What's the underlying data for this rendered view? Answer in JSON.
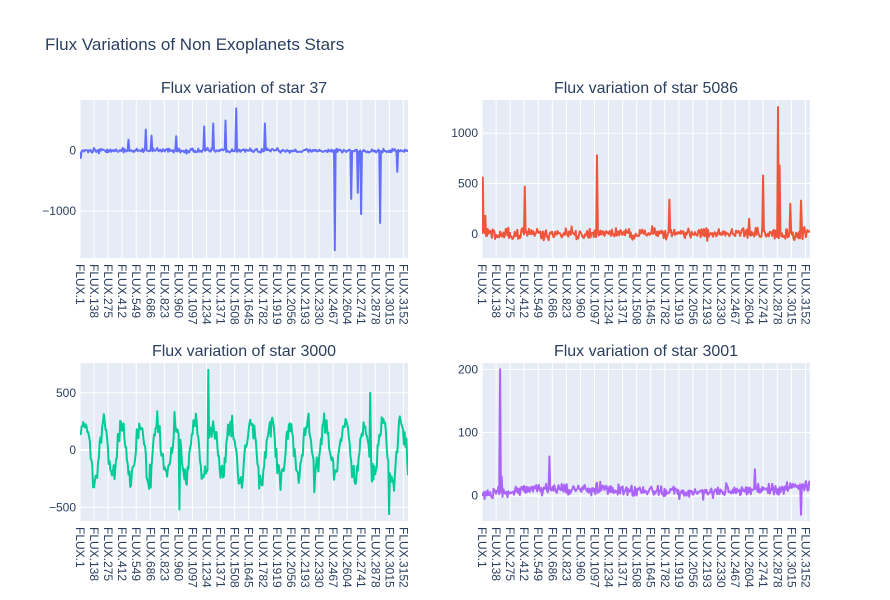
{
  "title": "Flux Variations of Non Exoplanets Stars",
  "chart_data": [
    {
      "type": "line",
      "title": "Flux variation of star 37",
      "color": "#636efa",
      "x_category_prefix": "FLUX.",
      "n_points": 3197,
      "tick_labels": [
        "FLUX.1",
        "FLUX.138",
        "FLUX.275",
        "FLUX.412",
        "FLUX.549",
        "FLUX.686",
        "FLUX.823",
        "FLUX.960",
        "FLUX.1097",
        "FLUX.1234",
        "FLUX.1371",
        "FLUX.1508",
        "FLUX.1645",
        "FLUX.1782",
        "FLUX.1919",
        "FLUX.2056",
        "FLUX.2193",
        "FLUX.2330",
        "FLUX.2467",
        "FLUX.2604",
        "FLUX.2741",
        "FLUX.2878",
        "FLUX.3015",
        "FLUX.3152"
      ],
      "ylim": [
        -1780,
        840
      ],
      "yticks": [
        -1000,
        0
      ],
      "baseline": 0,
      "noise": 25,
      "spikes": [
        [
          5,
          -120
        ],
        [
          470,
          180
        ],
        [
          640,
          350
        ],
        [
          700,
          250
        ],
        [
          940,
          240
        ],
        [
          1210,
          400
        ],
        [
          1300,
          450
        ],
        [
          1420,
          500
        ],
        [
          1520,
          700
        ],
        [
          1800,
          450
        ],
        [
          2480,
          -1650
        ],
        [
          2640,
          -800
        ],
        [
          2710,
          -700
        ],
        [
          2740,
          -1050
        ],
        [
          2920,
          -1200
        ],
        [
          3090,
          -350
        ]
      ],
      "seed": 37
    },
    {
      "type": "line",
      "title": "Flux variation of star 5086",
      "color": "#ef553b",
      "x_category_prefix": "FLUX.",
      "n_points": 3197,
      "tick_labels": [
        "FLUX.1",
        "FLUX.138",
        "FLUX.275",
        "FLUX.412",
        "FLUX.549",
        "FLUX.686",
        "FLUX.823",
        "FLUX.960",
        "FLUX.1097",
        "FLUX.1234",
        "FLUX.1371",
        "FLUX.1508",
        "FLUX.1645",
        "FLUX.1782",
        "FLUX.1919",
        "FLUX.2056",
        "FLUX.2193",
        "FLUX.2330",
        "FLUX.2467",
        "FLUX.2604",
        "FLUX.2741",
        "FLUX.2878",
        "FLUX.3015",
        "FLUX.3152"
      ],
      "ylim": [
        -240,
        1330
      ],
      "yticks": [
        0,
        500,
        1000
      ],
      "baseline": 0,
      "noise": 40,
      "spikes": [
        [
          5,
          560
        ],
        [
          30,
          180
        ],
        [
          420,
          470
        ],
        [
          1120,
          780
        ],
        [
          1830,
          340
        ],
        [
          2600,
          150
        ],
        [
          2740,
          580
        ],
        [
          2880,
          1260
        ],
        [
          2900,
          680
        ],
        [
          3000,
          300
        ],
        [
          3110,
          330
        ]
      ],
      "seed": 5086
    },
    {
      "type": "line",
      "title": "Flux variation of star 3000",
      "color": "#00cc96",
      "x_category_prefix": "FLUX.",
      "n_points": 3197,
      "tick_labels": [
        "FLUX.1",
        "FLUX.138",
        "FLUX.275",
        "FLUX.412",
        "FLUX.549",
        "FLUX.686",
        "FLUX.823",
        "FLUX.960",
        "FLUX.1097",
        "FLUX.1234",
        "FLUX.1371",
        "FLUX.1508",
        "FLUX.1645",
        "FLUX.1782",
        "FLUX.1919",
        "FLUX.2056",
        "FLUX.2193",
        "FLUX.2330",
        "FLUX.2467",
        "FLUX.2604",
        "FLUX.2741",
        "FLUX.2878",
        "FLUX.3015",
        "FLUX.3152"
      ],
      "ylim": [
        -620,
        760
      ],
      "yticks": [
        -500,
        0,
        500
      ],
      "baseline": 0,
      "noise": 0,
      "smooth_amp": 260,
      "spikes": [
        [
          1250,
          700
        ],
        [
          2830,
          500
        ],
        [
          3010,
          -560
        ],
        [
          970,
          -520
        ]
      ],
      "seed": 3000
    },
    {
      "type": "line",
      "title": "Flux variation of star 3001",
      "color": "#ab63fa",
      "x_category_prefix": "FLUX.",
      "n_points": 3197,
      "tick_labels": [
        "FLUX.1",
        "FLUX.138",
        "FLUX.275",
        "FLUX.412",
        "FLUX.549",
        "FLUX.686",
        "FLUX.823",
        "FLUX.960",
        "FLUX.1097",
        "FLUX.1234",
        "FLUX.1371",
        "FLUX.1508",
        "FLUX.1645",
        "FLUX.1782",
        "FLUX.1919",
        "FLUX.2056",
        "FLUX.2193",
        "FLUX.2330",
        "FLUX.2467",
        "FLUX.2604",
        "FLUX.2741",
        "FLUX.2878",
        "FLUX.3015",
        "FLUX.3152"
      ],
      "ylim": [
        -40,
        210
      ],
      "yticks": [
        0,
        100,
        200
      ],
      "baseline": 2,
      "noise": 6,
      "drift": 12,
      "spikes": [
        [
          175,
          200
        ],
        [
          195,
          30
        ],
        [
          660,
          62
        ],
        [
          1150,
          22
        ],
        [
          2380,
          20
        ],
        [
          2660,
          42
        ],
        [
          3110,
          -30
        ]
      ],
      "seed": 3001
    }
  ]
}
